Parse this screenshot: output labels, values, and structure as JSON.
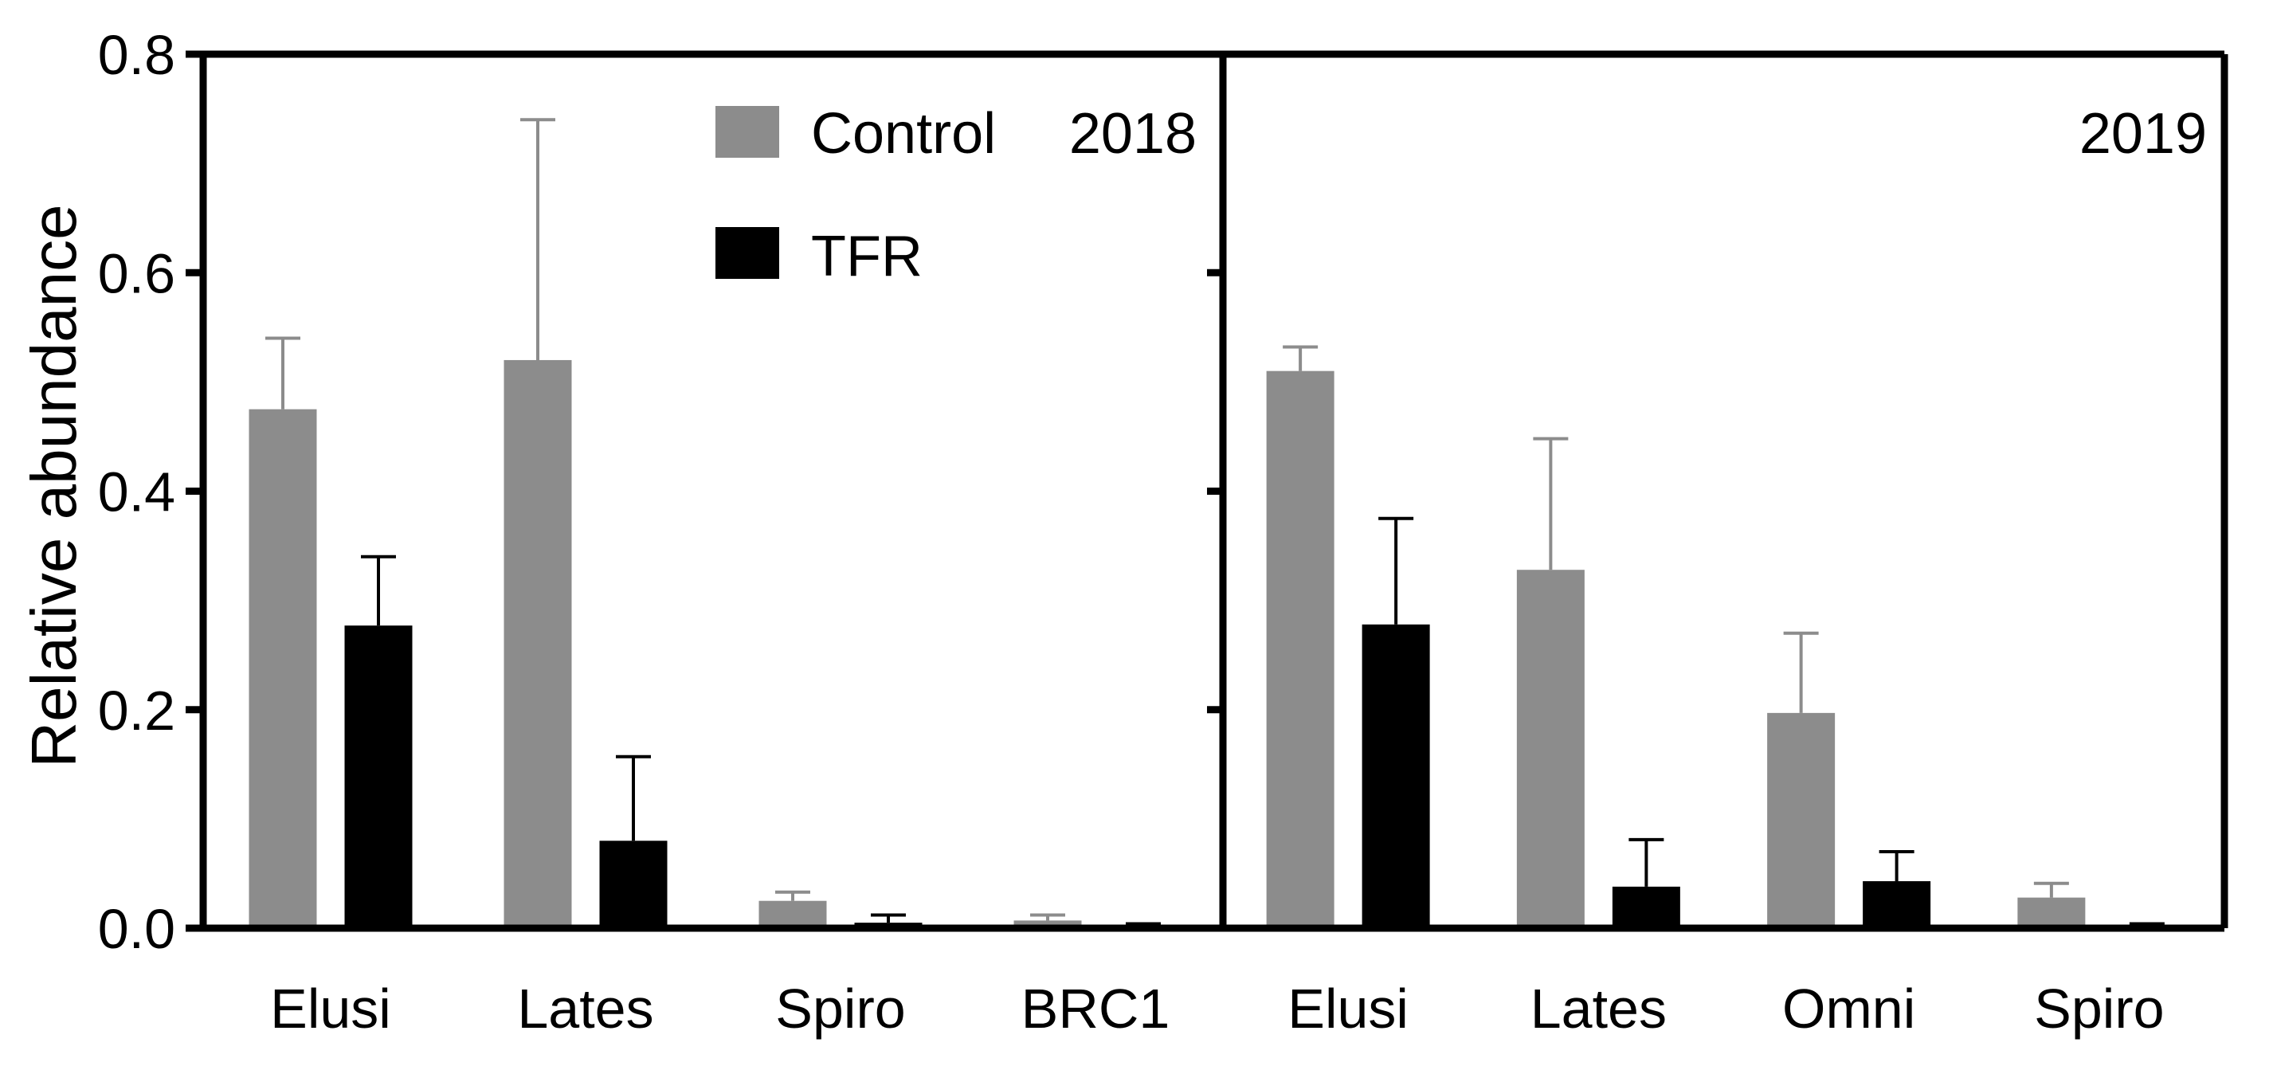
{
  "chart_data": {
    "type": "bar",
    "ylabel": "Relative abundance",
    "ylim": [
      0,
      0.8
    ],
    "yticks": [
      "0.0",
      "0.2",
      "0.4",
      "0.6",
      "0.8"
    ],
    "colors": {
      "Control": "#8c8c8c",
      "TFR": "#000000"
    },
    "legend": {
      "position": "top-left-panel",
      "entries": [
        "Control",
        "TFR"
      ]
    },
    "panels": [
      {
        "label": "2018",
        "categories": [
          "Elusi",
          "Lates",
          "Spiro",
          "BRC1"
        ],
        "series": [
          {
            "name": "Control",
            "values": [
              0.475,
              0.52,
              0.025,
              0.007
            ],
            "errors": [
              0.065,
              0.22,
              0.008,
              0.005
            ]
          },
          {
            "name": "TFR",
            "values": [
              0.277,
              0.08,
              0.005,
              0.002
            ],
            "errors": [
              0.063,
              0.077,
              0.007,
              0.002
            ]
          }
        ]
      },
      {
        "label": "2019",
        "categories": [
          "Elusi",
          "Lates",
          "Omni",
          "Spiro"
        ],
        "series": [
          {
            "name": "Control",
            "values": [
              0.51,
              0.328,
              0.197,
              0.028
            ],
            "errors": [
              0.022,
              0.12,
              0.073,
              0.013
            ]
          },
          {
            "name": "TFR",
            "values": [
              0.278,
              0.038,
              0.043,
              0.002
            ],
            "errors": [
              0.097,
              0.043,
              0.027,
              0.002
            ]
          }
        ]
      }
    ]
  }
}
